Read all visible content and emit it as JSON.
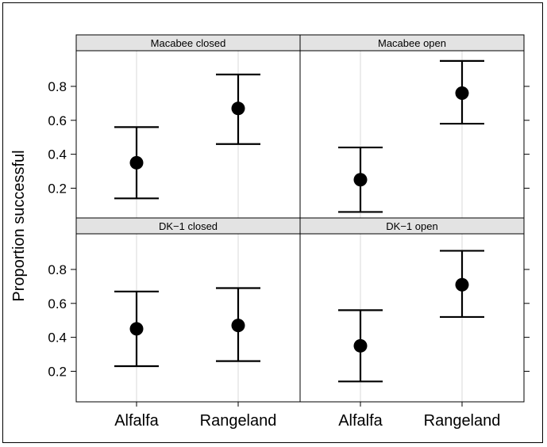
{
  "chart_data": {
    "type": "scatter",
    "subtype": "dot-with-error-bars",
    "ylabel": "Proportion successful",
    "categories": [
      "Alfalfa",
      "Rangeland"
    ],
    "y_ticks": [
      0.2,
      0.4,
      0.6,
      0.8
    ],
    "ylim": [
      0.02,
      1.01
    ],
    "grid": "vertical lines at categories",
    "panels": [
      {
        "title": "Macabee closed",
        "points": [
          {
            "x": "Alfalfa",
            "y": 0.35,
            "lower": 0.14,
            "upper": 0.56
          },
          {
            "x": "Rangeland",
            "y": 0.67,
            "lower": 0.46,
            "upper": 0.87
          }
        ]
      },
      {
        "title": "Macabee open",
        "points": [
          {
            "x": "Alfalfa",
            "y": 0.25,
            "lower": 0.06,
            "upper": 0.44
          },
          {
            "x": "Rangeland",
            "y": 0.76,
            "lower": 0.58,
            "upper": 0.95
          }
        ]
      },
      {
        "title": "DK−1 closed",
        "points": [
          {
            "x": "Alfalfa",
            "y": 0.45,
            "lower": 0.23,
            "upper": 0.67
          },
          {
            "x": "Rangeland",
            "y": 0.47,
            "lower": 0.26,
            "upper": 0.69
          }
        ]
      },
      {
        "title": "DK−1 open",
        "points": [
          {
            "x": "Alfalfa",
            "y": 0.35,
            "lower": 0.14,
            "upper": 0.56
          },
          {
            "x": "Rangeland",
            "y": 0.71,
            "lower": 0.52,
            "upper": 0.91
          }
        ]
      }
    ]
  }
}
